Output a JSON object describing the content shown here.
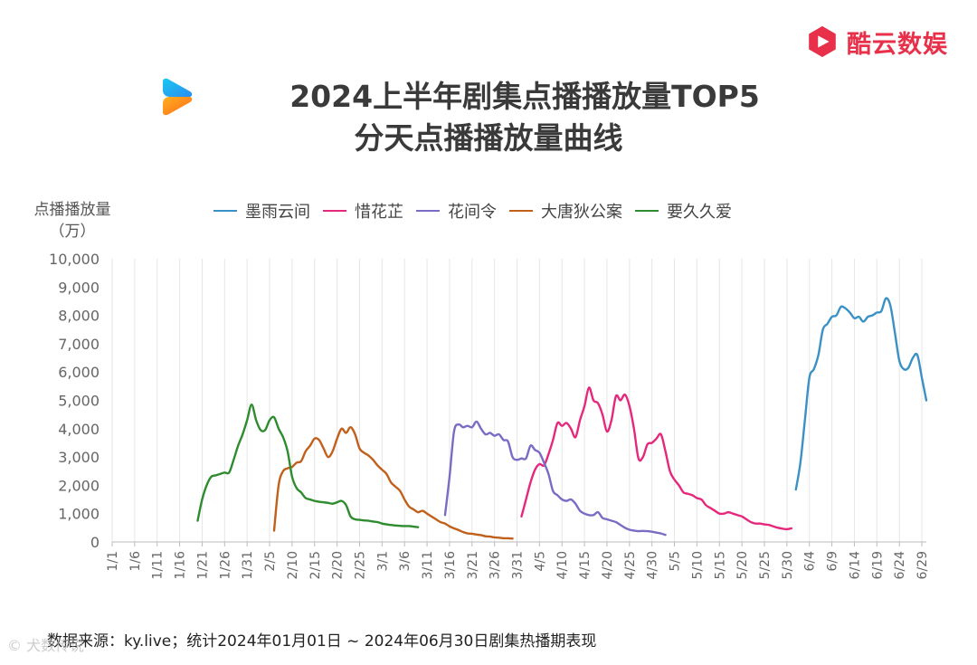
{
  "brand": {
    "name": "酷云数娱",
    "color": "#e8304a",
    "icon": "play-logo-icon"
  },
  "title": {
    "line1": "2024上半年剧集点播播放量TOP5",
    "line2": "分天点播播放量曲线",
    "logo_icon": "youku-logo-icon"
  },
  "source": "数据来源：ky.live；统计2024年01月01日 ~  2024年06月30日剧集热播期表现",
  "watermark": "© 犬数传说",
  "chart_data": {
    "type": "line",
    "ylabel": [
      "点播播放量",
      "（万）"
    ],
    "ylim": [
      0,
      10000
    ],
    "yticks": [
      0,
      1000,
      2000,
      3000,
      4000,
      5000,
      6000,
      7000,
      8000,
      9000,
      10000
    ],
    "ytick_labels": [
      "0",
      "1,000",
      "2,000",
      "3,000",
      "4,000",
      "5,000",
      "6,000",
      "7,000",
      "8,000",
      "9,000",
      "10,000"
    ],
    "x_range_days": [
      1,
      182
    ],
    "xticks": [
      1,
      6,
      11,
      16,
      21,
      26,
      31,
      36,
      41,
      46,
      51,
      56,
      61,
      66,
      71,
      76,
      81,
      86,
      91,
      96,
      101,
      106,
      111,
      116,
      121,
      126,
      131,
      136,
      141,
      146,
      151,
      156,
      161,
      166,
      171,
      176,
      181
    ],
    "xtick_labels": [
      "1/1",
      "1/6",
      "1/11",
      "1/16",
      "1/21",
      "1/26",
      "1/31",
      "2/5",
      "2/10",
      "2/15",
      "2/20",
      "2/25",
      "3/1",
      "3/6",
      "3/11",
      "3/16",
      "3/21",
      "3/26",
      "3/31",
      "4/5",
      "4/10",
      "4/15",
      "4/20",
      "4/25",
      "4/30",
      "5/5",
      "5/10",
      "5/15",
      "5/20",
      "5/25",
      "5/30",
      "6/4",
      "6/9",
      "6/14",
      "6/19",
      "6/24",
      "6/29"
    ],
    "grid": "x-only",
    "legend_position": "top",
    "series": [
      {
        "name": "墨雨云间",
        "color": "#3a91c5",
        "points": [
          [
            153,
            1850
          ],
          [
            154,
            2800
          ],
          [
            155,
            4300
          ],
          [
            156,
            5800
          ],
          [
            157,
            6100
          ],
          [
            158,
            6600
          ],
          [
            159,
            7500
          ],
          [
            160,
            7700
          ],
          [
            161,
            7950
          ],
          [
            162,
            8000
          ],
          [
            163,
            8300
          ],
          [
            164,
            8250
          ],
          [
            165,
            8100
          ],
          [
            166,
            7900
          ],
          [
            167,
            7950
          ],
          [
            168,
            7780
          ],
          [
            169,
            7950
          ],
          [
            170,
            8000
          ],
          [
            171,
            8100
          ],
          [
            172,
            8150
          ],
          [
            173,
            8600
          ],
          [
            174,
            8350
          ],
          [
            175,
            7400
          ],
          [
            176,
            6400
          ],
          [
            177,
            6100
          ],
          [
            178,
            6150
          ],
          [
            179,
            6500
          ],
          [
            180,
            6600
          ],
          [
            181,
            5800
          ],
          [
            182,
            5000
          ]
        ]
      },
      {
        "name": "惜花芷",
        "color": "#e6287c",
        "points": [
          [
            92,
            900
          ],
          [
            93,
            1500
          ],
          [
            94,
            2100
          ],
          [
            95,
            2550
          ],
          [
            96,
            2750
          ],
          [
            97,
            2700
          ],
          [
            98,
            3100
          ],
          [
            99,
            3600
          ],
          [
            100,
            4200
          ],
          [
            101,
            4100
          ],
          [
            102,
            4200
          ],
          [
            103,
            4000
          ],
          [
            104,
            3700
          ],
          [
            105,
            4300
          ],
          [
            106,
            4800
          ],
          [
            107,
            5450
          ],
          [
            108,
            5000
          ],
          [
            109,
            4900
          ],
          [
            110,
            4500
          ],
          [
            111,
            3900
          ],
          [
            112,
            4300
          ],
          [
            113,
            5150
          ],
          [
            114,
            5000
          ],
          [
            115,
            5200
          ],
          [
            116,
            4800
          ],
          [
            117,
            4000
          ],
          [
            118,
            2950
          ],
          [
            119,
            3000
          ],
          [
            120,
            3450
          ],
          [
            121,
            3500
          ],
          [
            122,
            3650
          ],
          [
            123,
            3800
          ],
          [
            124,
            3200
          ],
          [
            125,
            2500
          ],
          [
            126,
            2200
          ],
          [
            127,
            2000
          ],
          [
            128,
            1750
          ],
          [
            129,
            1700
          ],
          [
            130,
            1650
          ],
          [
            131,
            1550
          ],
          [
            132,
            1500
          ],
          [
            133,
            1300
          ],
          [
            134,
            1200
          ],
          [
            135,
            1100
          ],
          [
            136,
            1000
          ],
          [
            137,
            1000
          ],
          [
            138,
            1050
          ],
          [
            139,
            1000
          ],
          [
            140,
            950
          ],
          [
            141,
            900
          ],
          [
            142,
            800
          ],
          [
            143,
            700
          ],
          [
            144,
            650
          ],
          [
            145,
            650
          ],
          [
            146,
            620
          ],
          [
            147,
            600
          ],
          [
            148,
            550
          ],
          [
            149,
            500
          ],
          [
            150,
            470
          ],
          [
            151,
            450
          ],
          [
            152,
            480
          ]
        ]
      },
      {
        "name": "花间令",
        "color": "#7b6bc4",
        "points": [
          [
            75,
            950
          ],
          [
            76,
            2300
          ],
          [
            77,
            3900
          ],
          [
            78,
            4150
          ],
          [
            79,
            4050
          ],
          [
            80,
            4100
          ],
          [
            81,
            4050
          ],
          [
            82,
            4250
          ],
          [
            83,
            4000
          ],
          [
            84,
            3800
          ],
          [
            85,
            3850
          ],
          [
            86,
            3750
          ],
          [
            87,
            3800
          ],
          [
            88,
            3600
          ],
          [
            89,
            3550
          ],
          [
            90,
            3000
          ],
          [
            91,
            2900
          ],
          [
            92,
            2950
          ],
          [
            93,
            2950
          ],
          [
            94,
            3400
          ],
          [
            95,
            3250
          ],
          [
            96,
            3150
          ],
          [
            97,
            2800
          ],
          [
            98,
            2400
          ],
          [
            99,
            1800
          ],
          [
            100,
            1650
          ],
          [
            101,
            1500
          ],
          [
            102,
            1450
          ],
          [
            103,
            1500
          ],
          [
            104,
            1350
          ],
          [
            105,
            1100
          ],
          [
            106,
            1000
          ],
          [
            107,
            950
          ],
          [
            108,
            950
          ],
          [
            109,
            1050
          ],
          [
            110,
            850
          ],
          [
            111,
            800
          ],
          [
            112,
            750
          ],
          [
            113,
            700
          ],
          [
            114,
            600
          ],
          [
            115,
            500
          ],
          [
            116,
            430
          ],
          [
            117,
            400
          ],
          [
            118,
            380
          ],
          [
            119,
            390
          ],
          [
            120,
            380
          ],
          [
            121,
            360
          ],
          [
            122,
            330
          ],
          [
            123,
            300
          ],
          [
            124,
            250
          ]
        ]
      },
      {
        "name": "大唐狄公案",
        "color": "#c0601a",
        "points": [
          [
            37,
            400
          ],
          [
            38,
            2000
          ],
          [
            39,
            2500
          ],
          [
            40,
            2600
          ],
          [
            41,
            2650
          ],
          [
            42,
            2800
          ],
          [
            43,
            2850
          ],
          [
            44,
            3200
          ],
          [
            45,
            3400
          ],
          [
            46,
            3650
          ],
          [
            47,
            3600
          ],
          [
            48,
            3300
          ],
          [
            49,
            3000
          ],
          [
            50,
            3200
          ],
          [
            51,
            3650
          ],
          [
            52,
            4000
          ],
          [
            53,
            3850
          ],
          [
            54,
            4050
          ],
          [
            55,
            3800
          ],
          [
            56,
            3300
          ],
          [
            57,
            3150
          ],
          [
            58,
            3050
          ],
          [
            59,
            2900
          ],
          [
            60,
            2700
          ],
          [
            61,
            2550
          ],
          [
            62,
            2400
          ],
          [
            63,
            2100
          ],
          [
            64,
            1950
          ],
          [
            65,
            1800
          ],
          [
            66,
            1500
          ],
          [
            67,
            1250
          ],
          [
            68,
            1150
          ],
          [
            69,
            1050
          ],
          [
            70,
            1100
          ],
          [
            71,
            1000
          ],
          [
            72,
            900
          ],
          [
            73,
            800
          ],
          [
            74,
            700
          ],
          [
            75,
            650
          ],
          [
            76,
            550
          ],
          [
            77,
            480
          ],
          [
            78,
            420
          ],
          [
            79,
            350
          ],
          [
            80,
            300
          ],
          [
            81,
            290
          ],
          [
            82,
            260
          ],
          [
            83,
            240
          ],
          [
            84,
            200
          ],
          [
            85,
            190
          ],
          [
            86,
            160
          ],
          [
            87,
            150
          ],
          [
            88,
            130
          ],
          [
            89,
            130
          ],
          [
            90,
            120
          ]
        ]
      },
      {
        "name": "要久久爱",
        "color": "#2e8b2e",
        "points": [
          [
            20,
            750
          ],
          [
            21,
            1500
          ],
          [
            22,
            2000
          ],
          [
            23,
            2300
          ],
          [
            24,
            2350
          ],
          [
            25,
            2400
          ],
          [
            26,
            2450
          ],
          [
            27,
            2450
          ],
          [
            28,
            2900
          ],
          [
            29,
            3400
          ],
          [
            30,
            3800
          ],
          [
            31,
            4300
          ],
          [
            32,
            4850
          ],
          [
            33,
            4300
          ],
          [
            34,
            3950
          ],
          [
            35,
            3950
          ],
          [
            36,
            4300
          ],
          [
            37,
            4400
          ],
          [
            38,
            4000
          ],
          [
            39,
            3700
          ],
          [
            40,
            3200
          ],
          [
            41,
            2300
          ],
          [
            42,
            1900
          ],
          [
            43,
            1750
          ],
          [
            44,
            1550
          ],
          [
            45,
            1500
          ],
          [
            46,
            1450
          ],
          [
            47,
            1420
          ],
          [
            48,
            1400
          ],
          [
            49,
            1380
          ],
          [
            50,
            1350
          ],
          [
            51,
            1400
          ],
          [
            52,
            1450
          ],
          [
            53,
            1300
          ],
          [
            54,
            900
          ],
          [
            55,
            800
          ],
          [
            56,
            780
          ],
          [
            57,
            760
          ],
          [
            58,
            750
          ],
          [
            59,
            720
          ],
          [
            60,
            700
          ],
          [
            61,
            650
          ],
          [
            62,
            620
          ],
          [
            63,
            600
          ],
          [
            64,
            580
          ],
          [
            65,
            570
          ],
          [
            66,
            560
          ],
          [
            67,
            560
          ],
          [
            68,
            540
          ],
          [
            69,
            520
          ]
        ]
      }
    ]
  }
}
